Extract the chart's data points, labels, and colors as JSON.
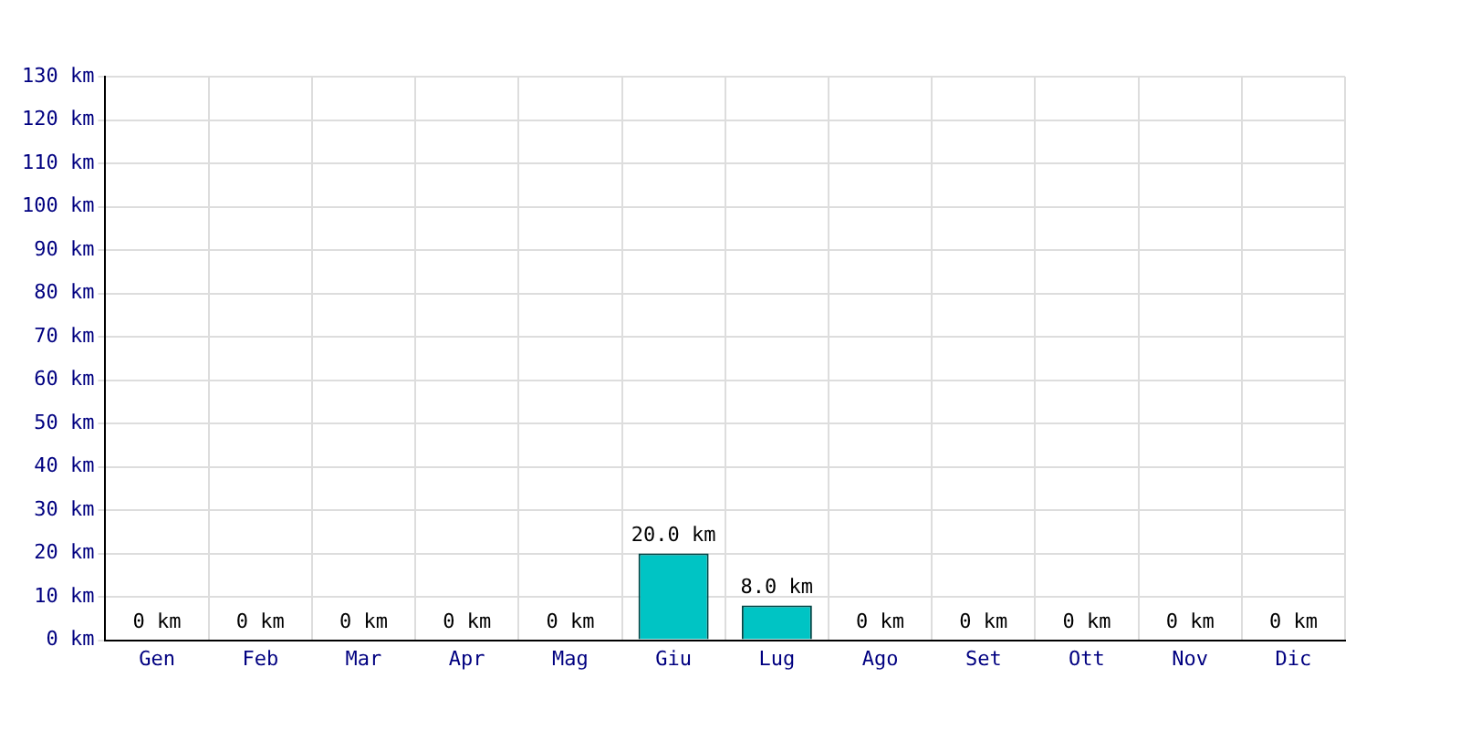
{
  "chart_data": {
    "type": "bar",
    "categories": [
      "Gen",
      "Feb",
      "Mar",
      "Apr",
      "Mag",
      "Giu",
      "Lug",
      "Ago",
      "Set",
      "Ott",
      "Nov",
      "Dic"
    ],
    "values": [
      0,
      0,
      0,
      0,
      0,
      20,
      8,
      0,
      0,
      0,
      0,
      0
    ],
    "value_labels": [
      "0 km",
      "0 km",
      "0 km",
      "0 km",
      "0 km",
      "20.0 km",
      "8.0 km",
      "0 km",
      "0 km",
      "0 km",
      "0 km",
      "0 km"
    ],
    "color": "#00c4c4",
    "ylim": [
      0,
      130
    ],
    "yticks": [
      {
        "value": 0,
        "label": "0 km"
      },
      {
        "value": 10,
        "label": "10 km"
      },
      {
        "value": 20,
        "label": "20 km"
      },
      {
        "value": 30,
        "label": "30 km"
      },
      {
        "value": 40,
        "label": "40 km"
      },
      {
        "value": 50,
        "label": "50 km"
      },
      {
        "value": 60,
        "label": "60 km"
      },
      {
        "value": 70,
        "label": "70 km"
      },
      {
        "value": 80,
        "label": "80 km"
      },
      {
        "value": 90,
        "label": "90 km"
      },
      {
        "value": 100,
        "label": "100 km"
      },
      {
        "value": 110,
        "label": "110 km"
      },
      {
        "value": 120,
        "label": "120 km"
      },
      {
        "value": 130,
        "label": "130 km"
      }
    ],
    "grid": true
  }
}
